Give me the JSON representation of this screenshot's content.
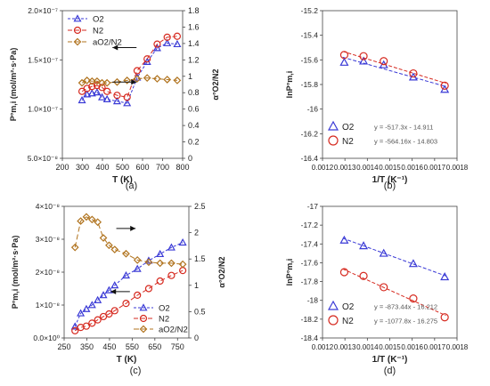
{
  "chart_data": [
    {
      "id": "a",
      "type": "line",
      "panel_label": "(a)",
      "xlabel": "T (K)",
      "ylabel": "P°m,i (mol/m²·s·Pa)",
      "y2label": "α°O2/N2",
      "xlim": [
        200,
        800
      ],
      "ylim": [
        5e-08,
        2e-07
      ],
      "y2lim": [
        0,
        1.8
      ],
      "xticks": [
        200,
        300,
        400,
        500,
        600,
        700,
        800
      ],
      "xtick_labels": [
        "200",
        "300",
        "400",
        "500",
        "600",
        "700",
        "800"
      ],
      "yticks": [
        5e-08,
        1e-07,
        1.5e-07,
        2e-07
      ],
      "ytick_labels": [
        "5.0×10⁻⁸",
        "1.0×10⁻⁷",
        "1.5×10⁻⁷",
        "2.0×10⁻⁷"
      ],
      "y2ticks": [
        0,
        0.2,
        0.4,
        0.6,
        0.8,
        1.0,
        1.2,
        1.4,
        1.6,
        1.8
      ],
      "y2tick_labels": [
        "0",
        "0.2",
        "0.4",
        "0.6",
        "0.8",
        "1",
        "1.2",
        "1.4",
        "1.6",
        "1.8"
      ],
      "legend_placement": "top-left",
      "series": [
        {
          "name": "O2",
          "axis": "left",
          "marker": "triangle",
          "color": "#3a3ad6",
          "dash": "3,2",
          "x": [
            298,
            323,
            348,
            373,
            398,
            423,
            473,
            523,
            573,
            623,
            673,
            723,
            773
          ],
          "y": [
            1.09e-07,
            1.15e-07,
            1.16e-07,
            1.17e-07,
            1.12e-07,
            1.1e-07,
            1.08e-07,
            1.06e-07,
            1.32e-07,
            1.48e-07,
            1.62e-07,
            1.67e-07,
            1.66e-07
          ]
        },
        {
          "name": "N2",
          "axis": "left",
          "marker": "circle",
          "color": "#d62a20",
          "dash": "5,3",
          "x": [
            298,
            323,
            348,
            373,
            398,
            423,
            473,
            523,
            573,
            623,
            673,
            723,
            773
          ],
          "y": [
            1.18e-07,
            1.21e-07,
            1.23e-07,
            1.24e-07,
            1.22e-07,
            1.18e-07,
            1.14e-07,
            1.12e-07,
            1.39e-07,
            1.51e-07,
            1.66e-07,
            1.73e-07,
            1.74e-07
          ]
        },
        {
          "name": "aO2/N2",
          "axis": "right",
          "marker": "diamond",
          "color": "#b0731e",
          "dash": "5,3",
          "x": [
            298,
            323,
            348,
            373,
            398,
            423,
            473,
            523,
            573,
            623,
            673,
            723,
            773
          ],
          "y": [
            0.92,
            0.95,
            0.94,
            0.94,
            0.92,
            0.92,
            0.93,
            0.95,
            0.97,
            0.98,
            0.97,
            0.96,
            0.95
          ]
        }
      ],
      "arrows": [
        {
          "direction": "left",
          "x0": 570,
          "x1": 450,
          "y2": 1.35
        },
        {
          "direction": "right",
          "x0": 450,
          "x1": 570,
          "y2": 0.93
        }
      ]
    },
    {
      "id": "b",
      "type": "scatter",
      "panel_label": "(b)",
      "xlabel": "1/T (K⁻¹)",
      "ylabel": "lnP°m,i",
      "xlim": [
        0.0012,
        0.0018
      ],
      "ylim": [
        -16.4,
        -15.2
      ],
      "xticks": [
        0.0012,
        0.0013,
        0.0014,
        0.0015,
        0.0016,
        0.0017,
        0.0018
      ],
      "xtick_labels": [
        "0.0012",
        "0.0013",
        "0.0014",
        "0.0015",
        "0.0016",
        "0.0017",
        "0.0018"
      ],
      "yticks": [
        -16.4,
        -16.2,
        -16.0,
        -15.8,
        -15.6,
        -15.4,
        -15.2
      ],
      "ytick_labels": [
        "-16.4",
        "-16.2",
        "-16",
        "-15.8",
        "-15.6",
        "-15.4",
        "-15.2"
      ],
      "legend_placement": "bottom-left",
      "series": [
        {
          "name": "O2",
          "marker": "triangle",
          "color": "#3a3ad6",
          "fit_label": "y = -517.3x - 14.911",
          "fit": {
            "slope": -517.3,
            "intercept": -14.911
          },
          "x": [
            0.001297,
            0.001383,
            0.001473,
            0.001605,
            0.001745
          ],
          "y": [
            -15.62,
            -15.61,
            -15.64,
            -15.74,
            -15.84
          ]
        },
        {
          "name": "N2",
          "marker": "circle",
          "color": "#d62a20",
          "fit_label": "y = -564.16x - 14.803",
          "fit": {
            "slope": -564.16,
            "intercept": -14.803
          },
          "x": [
            0.001297,
            0.001383,
            0.001473,
            0.001605,
            0.001745
          ],
          "y": [
            -15.56,
            -15.57,
            -15.61,
            -15.71,
            -15.81
          ]
        }
      ]
    },
    {
      "id": "c",
      "type": "line",
      "panel_label": "(c)",
      "xlabel": "T (K)",
      "ylabel": "P°m,i (mol/m²·s·Pa)",
      "y2label": "α°O2/N2",
      "xlim": [
        250,
        800
      ],
      "ylim": [
        0,
        4e-08
      ],
      "y2lim": [
        0,
        2.5
      ],
      "xticks": [
        250,
        350,
        450,
        550,
        650,
        750
      ],
      "xtick_labels": [
        "250",
        "350",
        "450",
        "550",
        "650",
        "750"
      ],
      "yticks": [
        0,
        1e-08,
        2e-08,
        3e-08,
        4e-08
      ],
      "ytick_labels": [
        "0.0×10⁰",
        "1×10⁻⁸",
        "2×10⁻⁸",
        "3×10⁻⁸",
        "4×10⁻⁸"
      ],
      "y2ticks": [
        0,
        0.5,
        1.0,
        1.5,
        2.0,
        2.5
      ],
      "y2tick_labels": [
        "0",
        "0.5",
        "1",
        "1.5",
        "2",
        "2.5"
      ],
      "legend_placement": "bottom-right",
      "series": [
        {
          "name": "O2",
          "axis": "left",
          "marker": "triangle",
          "color": "#3a3ad6",
          "dash": "3,2",
          "x": [
            298,
            323,
            348,
            373,
            398,
            423,
            448,
            473,
            523,
            573,
            623,
            673,
            723,
            773
          ],
          "y": [
            3.5e-09,
            7.5e-09,
            8.8e-09,
            1e-08,
            1.15e-08,
            1.3e-08,
            1.45e-08,
            1.6e-08,
            1.9e-08,
            2.1e-08,
            2.35e-08,
            2.55e-08,
            2.75e-08,
            2.9e-08
          ]
        },
        {
          "name": "N2",
          "axis": "left",
          "marker": "circle",
          "color": "#d62a20",
          "dash": "5,3",
          "x": [
            298,
            323,
            348,
            373,
            398,
            423,
            448,
            473,
            523,
            573,
            623,
            673,
            723,
            773
          ],
          "y": [
            2.2e-09,
            3.2e-09,
            3.6e-09,
            4.5e-09,
            5.5e-09,
            6.5e-09,
            7.3e-09,
            8.3e-09,
            1.05e-08,
            1.3e-08,
            1.5e-08,
            1.73e-08,
            1.9e-08,
            2.05e-08
          ]
        },
        {
          "name": "aO2/N2",
          "axis": "right",
          "marker": "diamond",
          "color": "#b0731e",
          "dash": "6,3",
          "x": [
            298,
            323,
            348,
            373,
            398,
            423,
            448,
            473,
            523,
            573,
            623,
            673,
            723,
            773
          ],
          "y": [
            1.72,
            2.22,
            2.3,
            2.25,
            2.2,
            1.9,
            1.76,
            1.68,
            1.6,
            1.48,
            1.44,
            1.42,
            1.42,
            1.4
          ]
        }
      ],
      "arrows": [
        {
          "direction": "right",
          "x0": 480,
          "x1": 565,
          "y2": 2.08
        },
        {
          "direction": "left",
          "x0": 540,
          "x1": 455,
          "y2": 0.88
        }
      ]
    },
    {
      "id": "d",
      "type": "scatter",
      "panel_label": "(d)",
      "xlabel": "1/T (K⁻¹)",
      "ylabel": "lnP°m,i",
      "xlim": [
        0.0012,
        0.0018
      ],
      "ylim": [
        -18.4,
        -17.0
      ],
      "xticks": [
        0.0012,
        0.0013,
        0.0014,
        0.0015,
        0.0016,
        0.0017,
        0.0018
      ],
      "xtick_labels": [
        "0.0012",
        "0.0013",
        "0.0014",
        "0.0015",
        "0.0016",
        "0.0017",
        "0.0018"
      ],
      "yticks": [
        -18.4,
        -18.2,
        -18.0,
        -17.8,
        -17.6,
        -17.4,
        -17.2,
        -17.0
      ],
      "ytick_labels": [
        "-18.4",
        "-18.2",
        "-18",
        "-17.8",
        "-17.6",
        "-17.4",
        "-17.2",
        "-17"
      ],
      "legend_placement": "bottom-left",
      "series": [
        {
          "name": "O2",
          "marker": "triangle",
          "color": "#3a3ad6",
          "fit_label": "y = -873.44x - 16.212",
          "fit": {
            "slope": -873.44,
            "intercept": -16.212
          },
          "x": [
            0.001297,
            0.001383,
            0.001473,
            0.001605,
            0.001745
          ],
          "y": [
            -17.36,
            -17.42,
            -17.5,
            -17.61,
            -17.75
          ]
        },
        {
          "name": "N2",
          "marker": "circle",
          "color": "#d62a20",
          "fit_label": "y = -1077.8x - 16.275",
          "fit": {
            "slope": -1077.8,
            "intercept": -16.275
          },
          "x": [
            0.001297,
            0.001383,
            0.001473,
            0.001605,
            0.001745
          ],
          "y": [
            -17.7,
            -17.74,
            -17.86,
            -17.98,
            -18.18
          ]
        }
      ]
    }
  ]
}
